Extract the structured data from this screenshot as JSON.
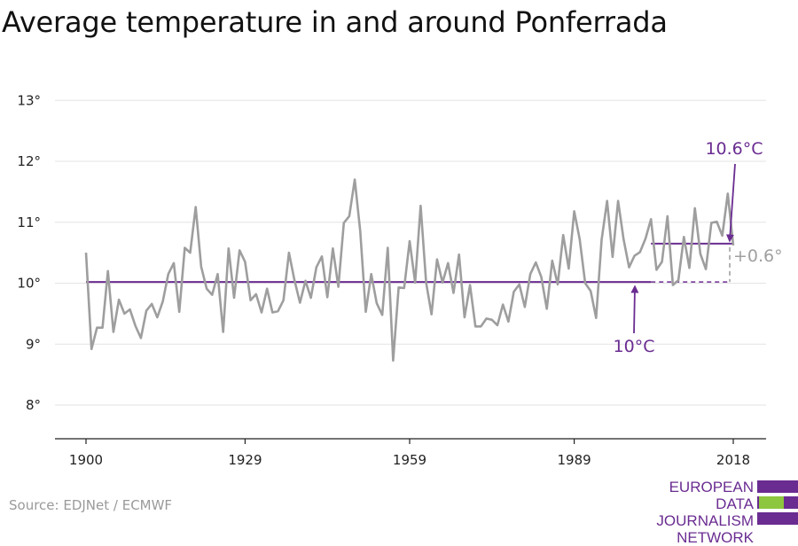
{
  "title": "Average temperature in and around Ponferrada",
  "source": "Source: EDJNet / ECMWF",
  "logo": {
    "line1": "EUROPEAN",
    "line2": "DATA JOURNALISM",
    "line3": "NETWORK"
  },
  "colors": {
    "series": "#9e9e9e",
    "reference": "#6a2c91",
    "grid": "#e3e3e3",
    "axis": "#222222",
    "logo_purple": "#6a2c91",
    "logo_green": "#8dc63f"
  },
  "chart_data": {
    "type": "line",
    "title": "Average temperature in and around Ponferrada",
    "y_ticks": [
      8,
      9,
      10,
      11,
      12,
      13
    ],
    "y_tick_suffix": "°",
    "ylim": [
      7.5,
      13
    ],
    "x_ticks": [
      1900,
      1929,
      1959,
      1989,
      2018
    ],
    "xlim": [
      1900,
      2018
    ],
    "x": [
      1900,
      1901,
      1902,
      1903,
      1904,
      1905,
      1906,
      1907,
      1908,
      1909,
      1910,
      1911,
      1912,
      1913,
      1914,
      1915,
      1916,
      1917,
      1918,
      1919,
      1920,
      1921,
      1922,
      1923,
      1924,
      1925,
      1926,
      1927,
      1928,
      1929,
      1930,
      1931,
      1932,
      1933,
      1934,
      1935,
      1936,
      1937,
      1938,
      1939,
      1940,
      1941,
      1942,
      1943,
      1944,
      1945,
      1946,
      1947,
      1948,
      1949,
      1950,
      1951,
      1952,
      1953,
      1954,
      1955,
      1956,
      1957,
      1958,
      1959,
      1960,
      1961,
      1962,
      1963,
      1964,
      1965,
      1966,
      1967,
      1968,
      1969,
      1970,
      1971,
      1972,
      1973,
      1974,
      1975,
      1976,
      1977,
      1978,
      1979,
      1980,
      1981,
      1982,
      1983,
      1984,
      1985,
      1986,
      1987,
      1988,
      1989,
      1990,
      1991,
      1992,
      1993,
      1994,
      1995,
      1996,
      1997,
      1998,
      1999,
      2000,
      2001,
      2002,
      2003,
      2004,
      2005,
      2006,
      2007,
      2008,
      2009,
      2010,
      2011,
      2012,
      2013,
      2014,
      2015,
      2016,
      2017,
      2018
    ],
    "series": [
      {
        "values": [
          10.5,
          8.92,
          9.27,
          9.27,
          10.2,
          9.2,
          9.73,
          9.5,
          9.57,
          9.3,
          9.1,
          9.55,
          9.66,
          9.44,
          9.7,
          10.15,
          10.33,
          9.53,
          10.58,
          10.5,
          11.25,
          10.27,
          9.91,
          9.81,
          10.15,
          9.2,
          10.57,
          9.76,
          10.54,
          10.35,
          9.72,
          9.82,
          9.52,
          9.91,
          9.52,
          9.54,
          9.72,
          10.5,
          10.05,
          9.68,
          10.04,
          9.76,
          10.26,
          10.44,
          9.77,
          10.57,
          9.94,
          10.99,
          11.1,
          11.7,
          10.85,
          9.53,
          10.15,
          9.67,
          9.48,
          10.58,
          8.73,
          9.93,
          9.92,
          10.69,
          10.01,
          11.27,
          10.01,
          9.49,
          10.39,
          10.01,
          10.33,
          9.84,
          10.47,
          9.44,
          9.97,
          9.29,
          9.29,
          9.42,
          9.4,
          9.31,
          9.65,
          9.37,
          9.86,
          9.98,
          9.61,
          10.15,
          10.34,
          10.1,
          9.58,
          10.37,
          9.98,
          10.79,
          10.24,
          11.18,
          10.72,
          10.0,
          9.87,
          9.43,
          10.71,
          11.35,
          10.43,
          11.35,
          10.72,
          10.26,
          10.45,
          10.51,
          10.73,
          11.05,
          10.22,
          10.35,
          11.1,
          9.97,
          10.05,
          10.76,
          10.25,
          11.23,
          10.48,
          10.23,
          10.99,
          11.01,
          10.78,
          11.47,
          10.62
        ]
      }
    ],
    "reference_line": {
      "value": 10.02,
      "label": "10°C"
    },
    "recent_average": {
      "value": 10.65,
      "from": 2003,
      "to": 2018,
      "label": "10.6°C"
    },
    "difference_label": "+0.6°"
  }
}
